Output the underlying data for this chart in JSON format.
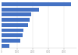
{
  "values": [
    4440,
    2400,
    1900,
    1800,
    1700,
    1400,
    1350,
    1200,
    500
  ],
  "bar_color": "#4472c4",
  "background_color": "#ffffff",
  "xlim": [
    0,
    4800
  ],
  "xtick_values": [
    0,
    1000,
    2000,
    3000,
    4000
  ],
  "bar_height": 0.72,
  "figsize": [
    1.0,
    0.71
  ],
  "dpi": 100
}
